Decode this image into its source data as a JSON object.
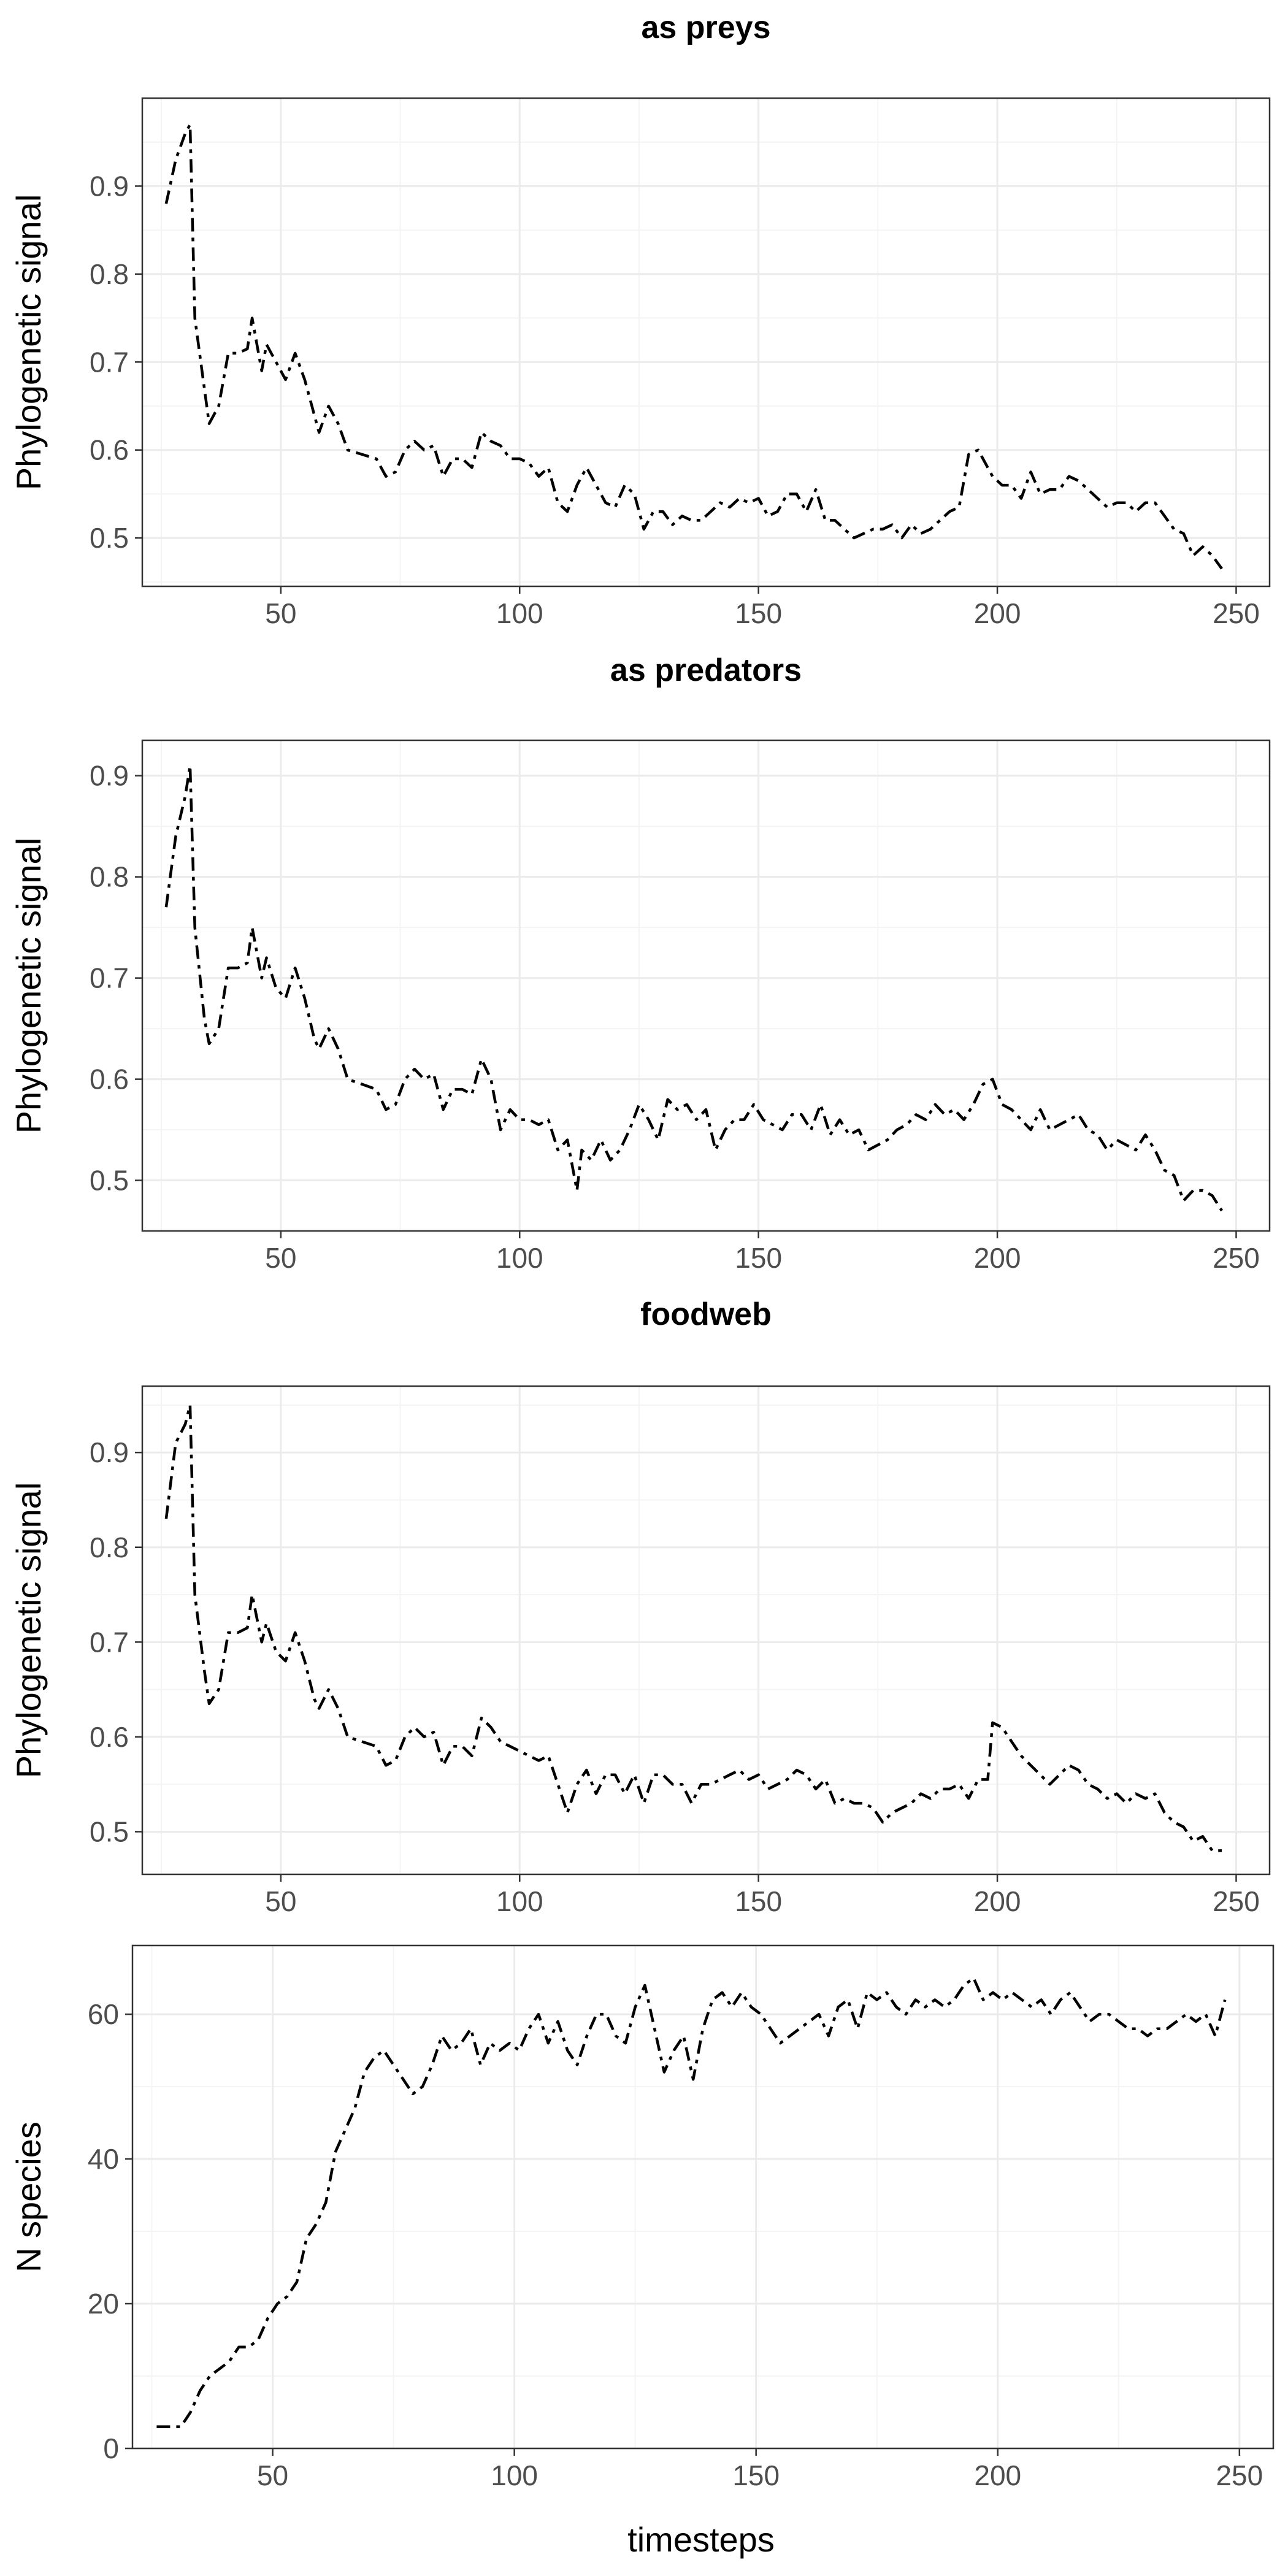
{
  "figure": {
    "xlabel": "timesteps"
  },
  "chart_data": [
    {
      "type": "line",
      "title": "as preys",
      "ylabel": "Phylogenetic signal",
      "xlim": [
        21,
        257
      ],
      "ylim": [
        0.445,
        1.0
      ],
      "xticks": [
        50,
        100,
        150,
        200,
        250
      ],
      "yticks": [
        0.5,
        0.6,
        0.7,
        0.8,
        0.9
      ],
      "ytick_labels": [
        "0.5",
        "0.6",
        "0.7",
        "0.8",
        "0.9"
      ],
      "grid": true,
      "series": [
        {
          "x": [
            26,
            28,
            30,
            31,
            32,
            34,
            35,
            37,
            39,
            41,
            43,
            44,
            46,
            47,
            49,
            51,
            53,
            55,
            57,
            58,
            60,
            62,
            64,
            67,
            70,
            72,
            74,
            76,
            78,
            80,
            82,
            84,
            86,
            88,
            90,
            92,
            94,
            96,
            98,
            100,
            102,
            104,
            106,
            108,
            110,
            112,
            114,
            116,
            118,
            120,
            122,
            124,
            126,
            128,
            130,
            132,
            134,
            136,
            138,
            140,
            142,
            144,
            146,
            148,
            150,
            152,
            154,
            156,
            158,
            160,
            162,
            164,
            166,
            168,
            170,
            172,
            174,
            176,
            178,
            180,
            182,
            184,
            186,
            188,
            190,
            192,
            194,
            196,
            198,
            199,
            201,
            203,
            205,
            207,
            209,
            211,
            213,
            215,
            217,
            219,
            221,
            223,
            225,
            227,
            229,
            231,
            233,
            235,
            237,
            239,
            241,
            243,
            245,
            247
          ],
          "y": [
            0.88,
            0.93,
            0.96,
            0.97,
            0.75,
            0.67,
            0.63,
            0.65,
            0.71,
            0.71,
            0.715,
            0.75,
            0.69,
            0.72,
            0.7,
            0.68,
            0.71,
            0.68,
            0.64,
            0.62,
            0.65,
            0.63,
            0.6,
            0.595,
            0.59,
            0.57,
            0.575,
            0.6,
            0.61,
            0.6,
            0.605,
            0.57,
            0.59,
            0.59,
            0.58,
            0.62,
            0.61,
            0.605,
            0.59,
            0.59,
            0.585,
            0.57,
            0.58,
            0.54,
            0.53,
            0.56,
            0.58,
            0.56,
            0.54,
            0.535,
            0.56,
            0.55,
            0.51,
            0.53,
            0.53,
            0.515,
            0.525,
            0.52,
            0.52,
            0.53,
            0.54,
            0.535,
            0.545,
            0.54,
            0.545,
            0.525,
            0.53,
            0.55,
            0.55,
            0.53,
            0.555,
            0.52,
            0.52,
            0.51,
            0.5,
            0.505,
            0.51,
            0.51,
            0.515,
            0.5,
            0.515,
            0.505,
            0.51,
            0.52,
            0.53,
            0.535,
            0.595,
            0.6,
            0.58,
            0.57,
            0.56,
            0.56,
            0.545,
            0.575,
            0.55,
            0.555,
            0.555,
            0.57,
            0.565,
            0.555,
            0.545,
            0.535,
            0.54,
            0.54,
            0.53,
            0.54,
            0.54,
            0.525,
            0.51,
            0.505,
            0.48,
            0.49,
            0.48,
            0.465
          ]
        }
      ]
    },
    {
      "type": "line",
      "title": "as predators",
      "ylabel": "Phylogenetic signal",
      "xlim": [
        21,
        257
      ],
      "ylim": [
        0.45,
        0.935
      ],
      "xticks": [
        50,
        100,
        150,
        200,
        250
      ],
      "yticks": [
        0.5,
        0.6,
        0.7,
        0.8,
        0.9
      ],
      "ytick_labels": [
        "0.5",
        "0.6",
        "0.7",
        "0.8",
        "0.9"
      ],
      "grid": true,
      "series": [
        {
          "x": [
            26,
            28,
            30,
            31,
            32,
            34,
            35,
            37,
            39,
            41,
            43,
            44,
            46,
            47,
            49,
            51,
            53,
            55,
            57,
            58,
            60,
            62,
            64,
            67,
            70,
            72,
            74,
            76,
            78,
            80,
            82,
            84,
            86,
            88,
            90,
            92,
            94,
            96,
            98,
            100,
            102,
            104,
            106,
            108,
            110,
            112,
            113,
            115,
            117,
            119,
            121,
            123,
            125,
            127,
            129,
            131,
            133,
            135,
            137,
            139,
            141,
            143,
            145,
            147,
            149,
            151,
            153,
            155,
            157,
            159,
            161,
            163,
            165,
            167,
            169,
            171,
            173,
            175,
            177,
            179,
            181,
            183,
            185,
            187,
            189,
            191,
            193,
            195,
            197,
            199,
            201,
            203,
            205,
            207,
            209,
            211,
            213,
            215,
            217,
            219,
            221,
            223,
            225,
            227,
            229,
            231,
            233,
            235,
            237,
            239,
            241,
            243,
            245,
            247
          ],
          "y": [
            0.77,
            0.84,
            0.88,
            0.91,
            0.75,
            0.66,
            0.635,
            0.65,
            0.71,
            0.71,
            0.715,
            0.75,
            0.7,
            0.72,
            0.69,
            0.68,
            0.71,
            0.68,
            0.64,
            0.63,
            0.65,
            0.63,
            0.6,
            0.595,
            0.59,
            0.57,
            0.575,
            0.6,
            0.61,
            0.6,
            0.605,
            0.57,
            0.59,
            0.59,
            0.585,
            0.62,
            0.6,
            0.55,
            0.57,
            0.56,
            0.56,
            0.555,
            0.56,
            0.53,
            0.54,
            0.49,
            0.53,
            0.52,
            0.54,
            0.52,
            0.53,
            0.55,
            0.575,
            0.56,
            0.54,
            0.58,
            0.57,
            0.575,
            0.56,
            0.57,
            0.53,
            0.55,
            0.56,
            0.56,
            0.575,
            0.56,
            0.555,
            0.55,
            0.565,
            0.565,
            0.55,
            0.575,
            0.545,
            0.56,
            0.545,
            0.55,
            0.53,
            0.535,
            0.54,
            0.55,
            0.555,
            0.565,
            0.56,
            0.575,
            0.565,
            0.57,
            0.56,
            0.575,
            0.595,
            0.6,
            0.575,
            0.57,
            0.56,
            0.55,
            0.57,
            0.55,
            0.555,
            0.56,
            0.565,
            0.55,
            0.545,
            0.53,
            0.54,
            0.535,
            0.53,
            0.545,
            0.53,
            0.51,
            0.505,
            0.48,
            0.49,
            0.49,
            0.485,
            0.47
          ]
        }
      ]
    },
    {
      "type": "line",
      "title": "foodweb",
      "ylabel": "Phylogenetic signal",
      "xlim": [
        21,
        257
      ],
      "ylim": [
        0.455,
        0.97
      ],
      "xticks": [
        50,
        100,
        150,
        200,
        250
      ],
      "yticks": [
        0.5,
        0.6,
        0.7,
        0.8,
        0.9
      ],
      "ytick_labels": [
        "0.5",
        "0.6",
        "0.7",
        "0.8",
        "0.9"
      ],
      "grid": true,
      "series": [
        {
          "x": [
            26,
            28,
            30,
            31,
            32,
            34,
            35,
            37,
            39,
            41,
            43,
            44,
            46,
            47,
            49,
            51,
            53,
            55,
            57,
            58,
            60,
            62,
            64,
            67,
            70,
            72,
            74,
            76,
            78,
            80,
            82,
            84,
            86,
            88,
            90,
            92,
            94,
            96,
            98,
            100,
            102,
            104,
            106,
            108,
            110,
            112,
            114,
            116,
            118,
            120,
            122,
            124,
            126,
            128,
            130,
            132,
            134,
            136,
            138,
            140,
            142,
            144,
            146,
            148,
            150,
            152,
            154,
            156,
            158,
            160,
            162,
            164,
            166,
            168,
            170,
            172,
            174,
            176,
            178,
            180,
            182,
            184,
            186,
            188,
            190,
            192,
            194,
            196,
            198,
            199,
            201,
            203,
            205,
            207,
            209,
            211,
            213,
            215,
            217,
            219,
            221,
            223,
            225,
            227,
            229,
            231,
            233,
            235,
            237,
            239,
            241,
            243,
            245,
            247
          ],
          "y": [
            0.83,
            0.91,
            0.93,
            0.95,
            0.75,
            0.67,
            0.635,
            0.65,
            0.71,
            0.71,
            0.715,
            0.75,
            0.7,
            0.72,
            0.69,
            0.68,
            0.71,
            0.68,
            0.64,
            0.63,
            0.65,
            0.63,
            0.6,
            0.595,
            0.59,
            0.57,
            0.575,
            0.6,
            0.61,
            0.6,
            0.605,
            0.57,
            0.59,
            0.59,
            0.58,
            0.62,
            0.61,
            0.595,
            0.59,
            0.585,
            0.58,
            0.575,
            0.58,
            0.55,
            0.52,
            0.55,
            0.565,
            0.54,
            0.56,
            0.56,
            0.54,
            0.56,
            0.53,
            0.56,
            0.56,
            0.55,
            0.55,
            0.53,
            0.55,
            0.55,
            0.555,
            0.56,
            0.565,
            0.555,
            0.56,
            0.545,
            0.55,
            0.555,
            0.565,
            0.56,
            0.545,
            0.555,
            0.53,
            0.535,
            0.53,
            0.53,
            0.525,
            0.51,
            0.52,
            0.525,
            0.53,
            0.54,
            0.535,
            0.545,
            0.545,
            0.55,
            0.535,
            0.555,
            0.555,
            0.615,
            0.61,
            0.595,
            0.58,
            0.57,
            0.56,
            0.55,
            0.56,
            0.57,
            0.565,
            0.55,
            0.545,
            0.535,
            0.54,
            0.53,
            0.54,
            0.535,
            0.54,
            0.52,
            0.51,
            0.505,
            0.49,
            0.495,
            0.48,
            0.48
          ]
        }
      ]
    },
    {
      "type": "line",
      "title": "",
      "ylabel": "N species",
      "xlim": [
        21,
        257
      ],
      "ylim": [
        0,
        69.5
      ],
      "xticks": [
        50,
        100,
        150,
        200,
        250
      ],
      "yticks": [
        0,
        20,
        40,
        60
      ],
      "ytick_labels": [
        "0",
        "20",
        "40",
        "60"
      ],
      "grid": true,
      "series": [
        {
          "x": [
            26,
            28,
            30,
            31,
            33,
            35,
            37,
            39,
            41,
            43,
            45,
            47,
            49,
            51,
            53,
            55,
            57,
            59,
            61,
            63,
            65,
            67,
            69,
            71,
            73,
            75,
            77,
            79,
            81,
            83,
            85,
            87,
            89,
            91,
            93,
            95,
            97,
            99,
            101,
            103,
            105,
            107,
            109,
            111,
            113,
            115,
            117,
            119,
            121,
            123,
            125,
            127,
            129,
            131,
            133,
            135,
            137,
            139,
            141,
            143,
            145,
            147,
            149,
            151,
            153,
            155,
            157,
            159,
            161,
            163,
            165,
            167,
            169,
            171,
            173,
            175,
            177,
            179,
            181,
            183,
            185,
            187,
            189,
            191,
            193,
            195,
            197,
            199,
            201,
            203,
            205,
            207,
            209,
            211,
            213,
            215,
            217,
            219,
            221,
            223,
            225,
            227,
            229,
            231,
            233,
            235,
            237,
            239,
            241,
            243,
            245,
            247
          ],
          "y": [
            3,
            3,
            3,
            3,
            5,
            8,
            10,
            11,
            12,
            14,
            14,
            15,
            18,
            20,
            21,
            23,
            29,
            31,
            34,
            41,
            44,
            47,
            52,
            54,
            55,
            53,
            51,
            49,
            50,
            53,
            57,
            55,
            56,
            58,
            53,
            56,
            55,
            56,
            55,
            58,
            60,
            56,
            59,
            55,
            53,
            57,
            60,
            60,
            57,
            56,
            61,
            64,
            58,
            52,
            55,
            57,
            51,
            58,
            62,
            63,
            61,
            63,
            61,
            60,
            58,
            56,
            57,
            58,
            59,
            60,
            57,
            61,
            62,
            58,
            63,
            62,
            63,
            61,
            60,
            62,
            61,
            62,
            61,
            62,
            64,
            65,
            62,
            63,
            62,
            63,
            62,
            61,
            62,
            60,
            62,
            63,
            61,
            59,
            60,
            60,
            59,
            58,
            58,
            57,
            58,
            58,
            59,
            60,
            59,
            60,
            57,
            62
          ]
        }
      ]
    }
  ]
}
